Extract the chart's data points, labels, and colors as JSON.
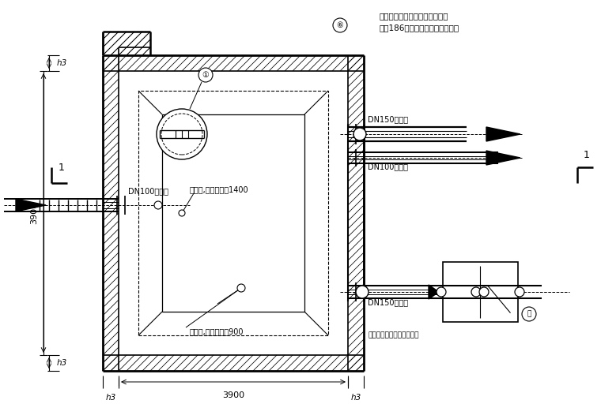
{
  "bg_color": "#ffffff",
  "lc": "#000000",
  "fig_width": 7.6,
  "fig_height": 5.12,
  "dpi": 100,
  "OX": 130,
  "OY": 42,
  "OW": 330,
  "OH": 400,
  "wall_t": 20,
  "texts": {
    "top1": "顶板预留水位传示装置孔，做法",
    "top2": "见第186页，安装要求详见总说明",
    "dn150out": "DN150出水管",
    "dn100filt": "DN100进水管",
    "dn100in": "DN100进水管",
    "dn150ov": "DN150溢水管",
    "dim3900": "3900",
    "h3": "h3",
    "vent1400": "通风管,高出覆土面1400",
    "vent900": "通风管,高出覆土面900",
    "dim_note": "尺寸根据工程具体情况决定"
  }
}
